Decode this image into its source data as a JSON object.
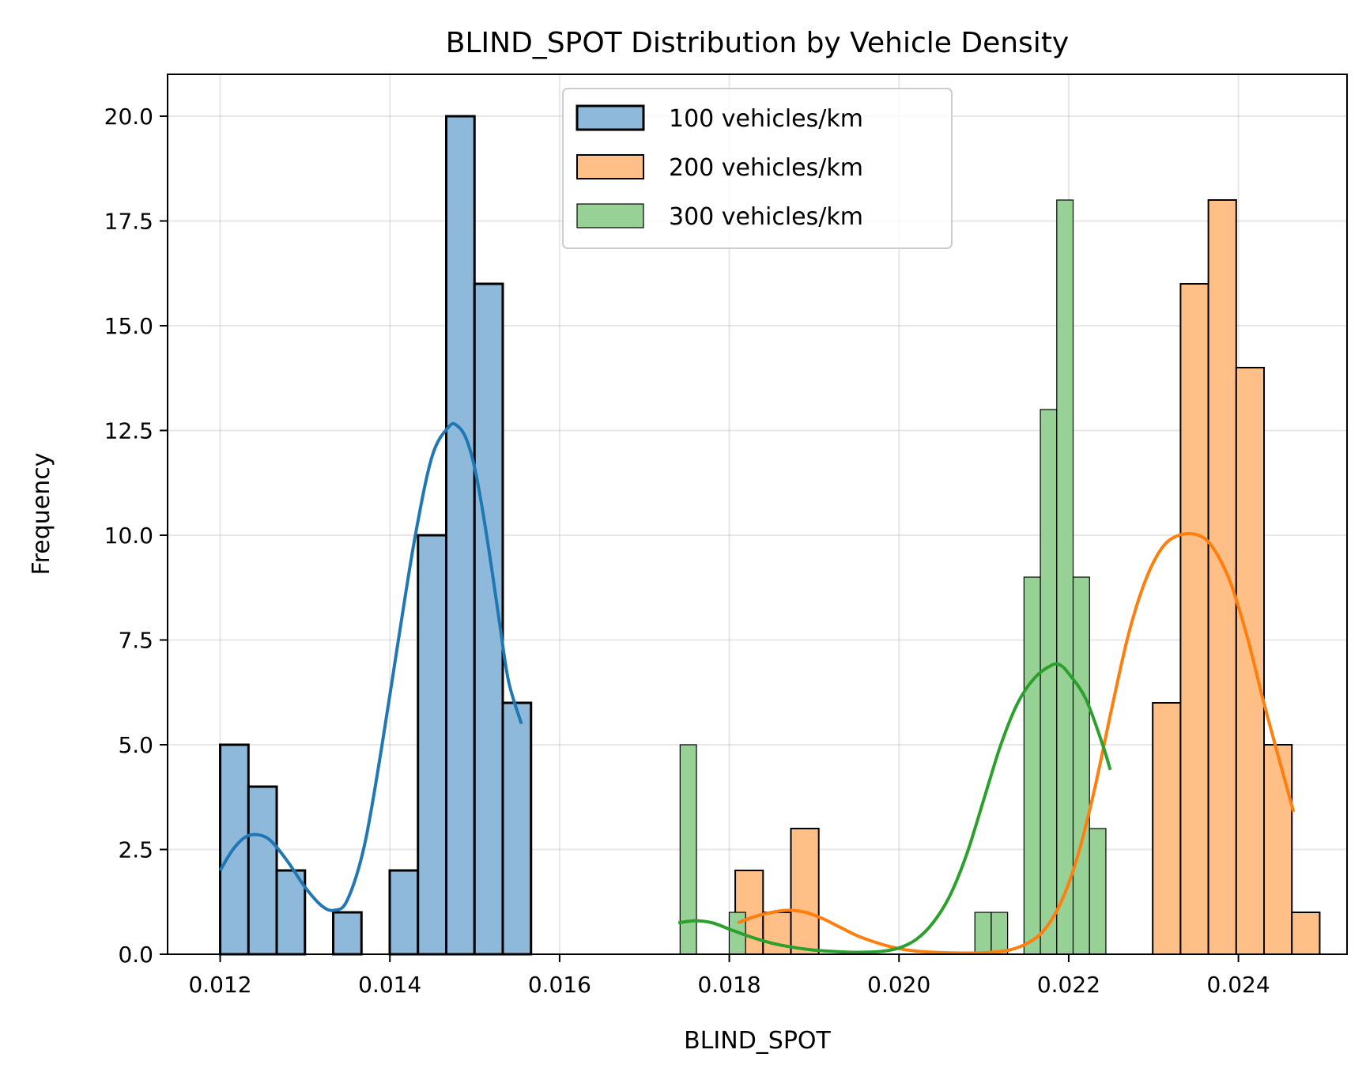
{
  "chart_data": {
    "type": "histogram",
    "title": "BLIND_SPOT Distribution by Vehicle Density",
    "xlabel": "BLIND_SPOT",
    "ylabel": "Frequency",
    "xlim": [
      0.01138,
      0.02528
    ],
    "ylim": [
      0,
      21
    ],
    "xticks": [
      0.012,
      0.014,
      0.016,
      0.018,
      0.02,
      0.022,
      0.024
    ],
    "xtick_labels": [
      "0.012",
      "0.014",
      "0.016",
      "0.018",
      "0.020",
      "0.022",
      "0.024"
    ],
    "yticks": [
      0,
      2.5,
      5,
      7.5,
      10,
      12.5,
      15,
      17.5,
      20
    ],
    "ytick_labels": [
      "0.0",
      "2.5",
      "5.0",
      "7.5",
      "10.0",
      "12.5",
      "15.0",
      "17.5",
      "20.0"
    ],
    "grid": true,
    "legend_position": "top-center",
    "series": [
      {
        "name": "100 vehicles/km",
        "color": "#1f77b4",
        "fill": "#8fb9da",
        "bin_start": 0.012,
        "bin_width": 0.000333,
        "counts": [
          5,
          4,
          2,
          0,
          1,
          0,
          2,
          10,
          20,
          16,
          6
        ],
        "kde_x": [
          0.012,
          0.01215,
          0.0123,
          0.01245,
          0.0126,
          0.0128,
          0.013,
          0.0132,
          0.01335,
          0.0135,
          0.0137,
          0.0139,
          0.0141,
          0.0143,
          0.0145,
          0.0147,
          0.0148,
          0.0149,
          0.015,
          0.0151,
          0.0152,
          0.0153,
          0.0154,
          0.01555
        ],
        "kde_y": [
          2.0,
          2.5,
          2.8,
          2.85,
          2.7,
          2.2,
          1.6,
          1.15,
          1.05,
          1.3,
          2.6,
          4.9,
          7.5,
          10.0,
          11.9,
          12.6,
          12.6,
          12.3,
          11.6,
          10.5,
          9.2,
          7.8,
          6.5,
          5.5
        ]
      },
      {
        "name": "200 vehicles/km",
        "color": "#ff7f0e",
        "fill": "#ffbf86",
        "bin_start": 0.01807,
        "bin_width": 0.000328,
        "counts": [
          2,
          1,
          3,
          0,
          0,
          0,
          0,
          0,
          0,
          0,
          0,
          0,
          0,
          0,
          0,
          6,
          16,
          18,
          14,
          5,
          1
        ],
        "kde_x": [
          0.0181,
          0.0183,
          0.0185,
          0.0187,
          0.0189,
          0.0191,
          0.0193,
          0.0195,
          0.0197,
          0.0199,
          0.0201,
          0.0203,
          0.0205,
          0.0207,
          0.0209,
          0.0211,
          0.0213,
          0.0215,
          0.0217,
          0.0219,
          0.0221,
          0.0223,
          0.0225,
          0.0227,
          0.0229,
          0.0231,
          0.0233,
          0.02353,
          0.0237,
          0.0239,
          0.0241,
          0.0243,
          0.0245,
          0.02465
        ],
        "kde_y": [
          0.75,
          0.9,
          1.0,
          1.05,
          1.0,
          0.85,
          0.65,
          0.45,
          0.3,
          0.18,
          0.1,
          0.06,
          0.04,
          0.03,
          0.03,
          0.05,
          0.1,
          0.25,
          0.55,
          1.2,
          2.3,
          3.9,
          5.8,
          7.6,
          8.9,
          9.7,
          10.0,
          10.0,
          9.7,
          8.9,
          7.6,
          6.0,
          4.5,
          3.4
        ]
      },
      {
        "name": "300 vehicles/km",
        "color": "#2ca02c",
        "fill": "#98d196",
        "bin_start": 0.01742,
        "bin_width": 0.000193,
        "counts": [
          5,
          0,
          0,
          1,
          0,
          0,
          0,
          0,
          0,
          0,
          0,
          0,
          0,
          0,
          0,
          0,
          0,
          0,
          1,
          1,
          0,
          9,
          13,
          18,
          9,
          3
        ],
        "kde_x": [
          0.0174,
          0.0176,
          0.0178,
          0.018,
          0.0182,
          0.0184,
          0.0186,
          0.0188,
          0.019,
          0.0192,
          0.0194,
          0.0196,
          0.0198,
          0.02,
          0.0202,
          0.0204,
          0.0206,
          0.0208,
          0.021,
          0.0212,
          0.0214,
          0.0216,
          0.0218,
          0.0219,
          0.022,
          0.0222,
          0.0224,
          0.02249
        ],
        "kde_y": [
          0.75,
          0.8,
          0.75,
          0.6,
          0.45,
          0.32,
          0.22,
          0.15,
          0.1,
          0.07,
          0.05,
          0.05,
          0.07,
          0.15,
          0.35,
          0.75,
          1.4,
          2.4,
          3.7,
          5.0,
          6.0,
          6.6,
          6.9,
          6.9,
          6.7,
          6.1,
          5.0,
          4.4
        ]
      }
    ]
  }
}
